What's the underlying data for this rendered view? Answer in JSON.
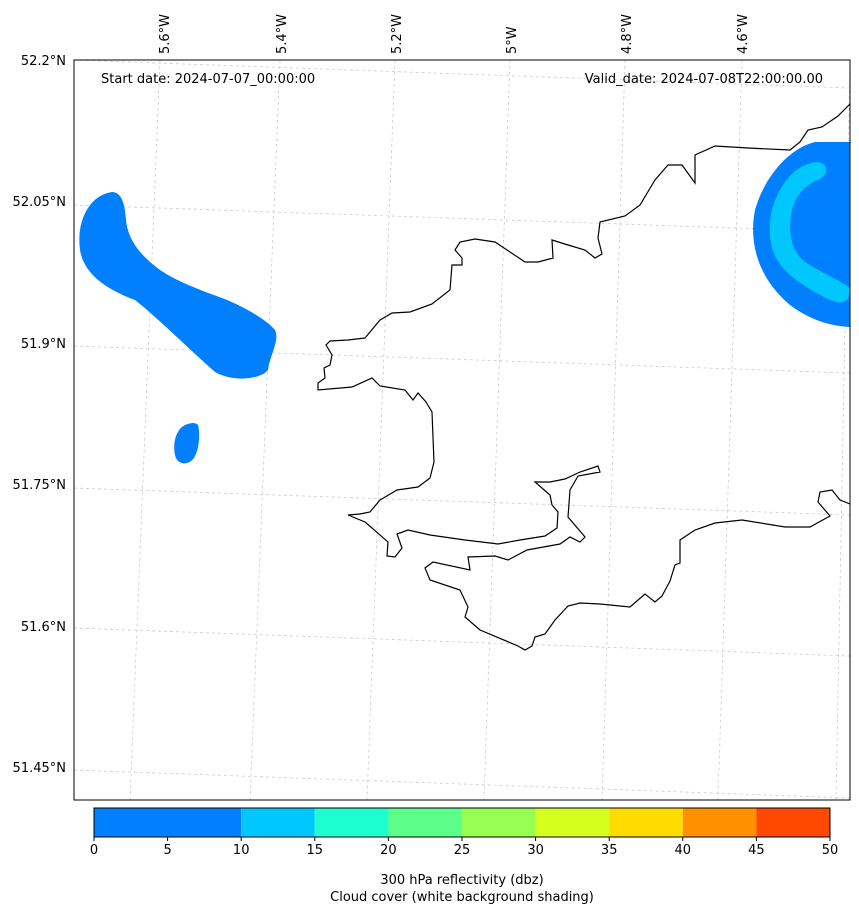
{
  "map": {
    "start_label": "Start date: 2024-07-07_00:00:00",
    "valid_label": "Valid_date: 2024-07-08T22:00:00.00",
    "lat_labels": [
      "52.2°N",
      "52.05°N",
      "51.9°N",
      "51.75°N",
      "51.6°N",
      "51.45°N"
    ],
    "lon_labels": [
      "5.6°W",
      "5.4°W",
      "5.2°W",
      "5°W",
      "4.8°W",
      "4.6°W"
    ],
    "colors": {
      "land_outline": "#000000",
      "reflectivity_low": "#0080ff",
      "reflectivity_mid": "#00c8ff",
      "gridline": "#cccccc"
    }
  },
  "colorbar": {
    "ticks": [
      "0",
      "5",
      "10",
      "15",
      "20",
      "25",
      "30",
      "35",
      "40",
      "45",
      "50"
    ],
    "colors": [
      "#0080ff",
      "#00c8ff",
      "#1effd0",
      "#5cff8a",
      "#96ff52",
      "#d4ff1e",
      "#ffdc00",
      "#ff9000",
      "#ff4800"
    ],
    "label_line1": "300 hPa reflectivity (dbz)",
    "label_line2": "Cloud cover (white background shading)"
  }
}
